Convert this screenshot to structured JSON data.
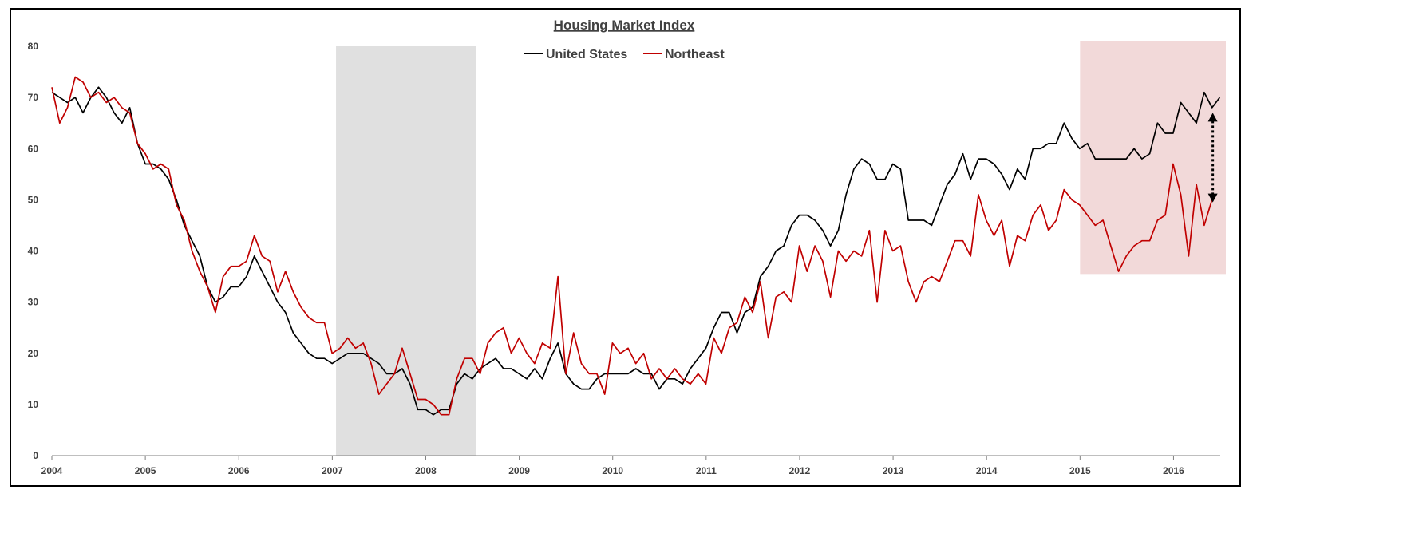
{
  "chart_data": {
    "type": "line",
    "title": "Housing Market Index",
    "xlabel": "",
    "ylabel": "",
    "ylim": [
      0,
      80
    ],
    "xlim": [
      2004,
      2016.5
    ],
    "yticks": [
      "0",
      "10",
      "20",
      "30",
      "40",
      "50",
      "60",
      "70",
      "80"
    ],
    "xticks": [
      "2004",
      "2005",
      "2006",
      "2007",
      "2008",
      "2009",
      "2010",
      "2011",
      "2012",
      "2013",
      "2014",
      "2015",
      "2016"
    ],
    "grid": false,
    "legend_position": "top-center",
    "shaded_regions": [
      {
        "x0": 2007.04,
        "x1": 2008.54,
        "y0": 0,
        "y1": 80,
        "color": "#e0e0e0"
      },
      {
        "x0": 2015.0,
        "x1": 2016.6,
        "y0": 35.5,
        "y1": 81,
        "color": "#f2d9d9"
      }
    ],
    "annotation_arrow": {
      "x": 2016.42,
      "y_from": 49.5,
      "y_to": 67,
      "color": "#000000"
    },
    "series": [
      {
        "name": "United States",
        "color": "#000000",
        "x_start": 2004.0,
        "x_step": 0.0833,
        "values": [
          71,
          70,
          69,
          70,
          67,
          70,
          72,
          70,
          67,
          65,
          68,
          61,
          57,
          57,
          56,
          54,
          50,
          45,
          42,
          39,
          33,
          30,
          31,
          33,
          33,
          35,
          39,
          36,
          33,
          30,
          28,
          24,
          22,
          20,
          19,
          19,
          18,
          19,
          20,
          20,
          20,
          19,
          18,
          16,
          16,
          17,
          14,
          9,
          9,
          8,
          9,
          9,
          14,
          16,
          15,
          17,
          18,
          19,
          17,
          17,
          16,
          15,
          17,
          15,
          19,
          22,
          16,
          14,
          13,
          13,
          15,
          16,
          16,
          16,
          16,
          17,
          16,
          16,
          13,
          15,
          15,
          14,
          17,
          19,
          21,
          25,
          28,
          28,
          24,
          28,
          29,
          35,
          37,
          40,
          41,
          45,
          47,
          47,
          46,
          44,
          41,
          44,
          51,
          56,
          58,
          57,
          54,
          54,
          57,
          56,
          46,
          46,
          46,
          45,
          49,
          53,
          55,
          59,
          54,
          58,
          58,
          57,
          55,
          52,
          56,
          54,
          60,
          60,
          61,
          61,
          65,
          62,
          60,
          61,
          58,
          58,
          58,
          58,
          58,
          60,
          58,
          59,
          65,
          63,
          63,
          69,
          67,
          65,
          71,
          68,
          70
        ]
      },
      {
        "name": "Northeast",
        "color": "#c00000",
        "x_start": 2004.0,
        "x_step": 0.0833,
        "values": [
          72,
          65,
          68,
          74,
          73,
          70,
          71,
          69,
          70,
          68,
          67,
          61,
          59,
          56,
          57,
          56,
          49,
          46,
          40,
          36,
          33,
          28,
          35,
          37,
          37,
          38,
          43,
          39,
          38,
          32,
          36,
          32,
          29,
          27,
          26,
          26,
          20,
          21,
          23,
          21,
          22,
          18,
          12,
          14,
          16,
          21,
          16,
          11,
          11,
          10,
          8,
          8,
          15,
          19,
          19,
          16,
          22,
          24,
          25,
          20,
          23,
          20,
          18,
          22,
          21,
          35,
          16,
          24,
          18,
          16,
          16,
          12,
          22,
          20,
          21,
          18,
          20,
          15,
          17,
          15,
          17,
          15,
          14,
          16,
          14,
          23,
          20,
          25,
          26,
          31,
          28,
          34,
          23,
          31,
          32,
          30,
          41,
          36,
          41,
          38,
          31,
          40,
          38,
          40,
          39,
          44,
          30,
          44,
          40,
          41,
          34,
          30,
          34,
          35,
          34,
          38,
          42,
          42,
          39,
          51,
          46,
          43,
          46,
          37,
          43,
          42,
          47,
          49,
          44,
          46,
          52,
          50,
          49,
          47,
          45,
          46,
          41,
          36,
          39,
          41,
          42,
          42,
          46,
          47,
          57,
          51,
          39,
          53,
          45,
          50
        ]
      }
    ]
  }
}
